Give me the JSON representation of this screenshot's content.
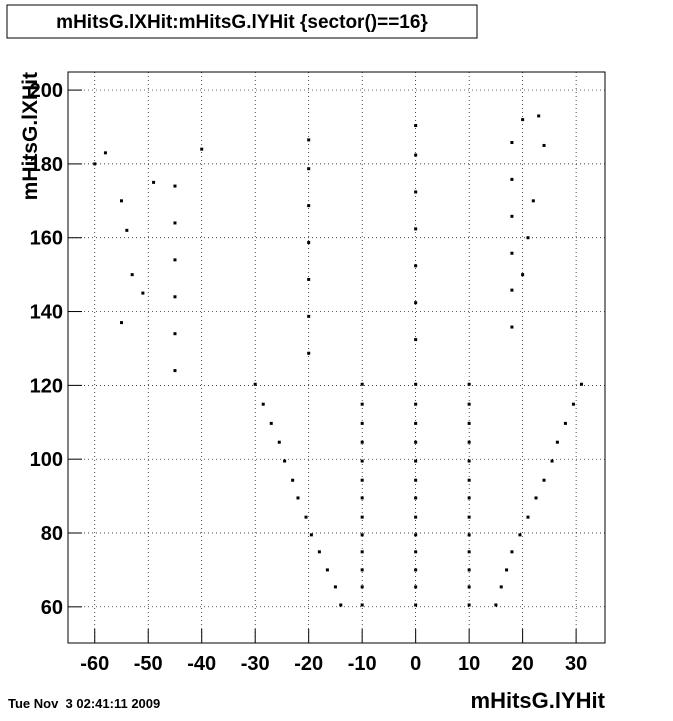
{
  "chart_data": {
    "type": "scatter",
    "title": "mHitsG.lXHit:mHitsG.lYHit {sector()==16}",
    "x_label": "mHitsG.lYHit",
    "y_label": "mHitsG.lXHit",
    "timestamp": "Tue Nov  3 02:41:11 2009",
    "color": "#000000",
    "grid": true,
    "xlim": [
      -65,
      35.4
    ],
    "ylim": [
      50.2,
      204.9
    ],
    "xticks": [
      -60,
      -50,
      -40,
      -30,
      -20,
      -10,
      0,
      10,
      20,
      30
    ],
    "yticks": [
      60,
      80,
      100,
      120,
      140,
      160,
      180,
      200
    ],
    "x": [
      -30,
      -10,
      0,
      10,
      31,
      -28.5,
      -10,
      0,
      10,
      29.5,
      -27,
      -10,
      0,
      10,
      28,
      -25.5,
      -10,
      0,
      10,
      26.5,
      -24.5,
      -10,
      0,
      10,
      25.5,
      -23,
      -10,
      0,
      10,
      24,
      -22,
      -10,
      0,
      10,
      22.5,
      -20.5,
      -10,
      0,
      10,
      21,
      -19.5,
      -10,
      0,
      10,
      19.5,
      -18,
      -10,
      0,
      10,
      18,
      -16.5,
      -10,
      0,
      10,
      17,
      -15,
      -10,
      0,
      10,
      16,
      -14,
      -10,
      0,
      10,
      15,
      -45,
      -20,
      0,
      18,
      -45,
      -20,
      0,
      18,
      -45,
      -20,
      0,
      18,
      -45,
      -20,
      0,
      18,
      -45,
      -20,
      0,
      18,
      -45,
      -20,
      0,
      18,
      -40,
      -20,
      0,
      -60,
      -58,
      -55,
      -54,
      -53,
      -51,
      -55,
      -49,
      20,
      23,
      24,
      22,
      21,
      20
    ],
    "values": [
      120.3,
      120.3,
      120.3,
      120.3,
      120.3,
      114.9,
      114.9,
      114.9,
      114.9,
      114.9,
      109.7,
      109.7,
      109.7,
      109.7,
      109.7,
      104.6,
      104.6,
      104.6,
      104.6,
      104.6,
      99.5,
      99.5,
      99.5,
      99.5,
      99.5,
      94.3,
      94.3,
      94.3,
      94.3,
      94.3,
      89.5,
      89.5,
      89.5,
      89.5,
      89.5,
      84.3,
      84.3,
      84.3,
      84.3,
      84.3,
      79.5,
      79.5,
      79.5,
      79.5,
      79.5,
      74.9,
      74.9,
      74.9,
      74.9,
      74.9,
      70,
      70,
      70,
      70,
      70,
      65.4,
      65.4,
      65.4,
      65.4,
      65.4,
      60.5,
      60.5,
      60.5,
      60.5,
      60.5,
      124,
      128.7,
      132.4,
      135.8,
      134,
      138.7,
      142.4,
      145.8,
      144,
      148.7,
      152.4,
      155.8,
      154,
      158.7,
      162.4,
      165.8,
      164,
      168.7,
      172.4,
      175.8,
      174,
      178.7,
      182.4,
      185.8,
      184,
      186.5,
      190.4,
      180,
      183,
      170,
      162,
      150,
      145,
      137,
      175,
      192,
      193,
      185,
      170,
      160,
      150
    ]
  }
}
